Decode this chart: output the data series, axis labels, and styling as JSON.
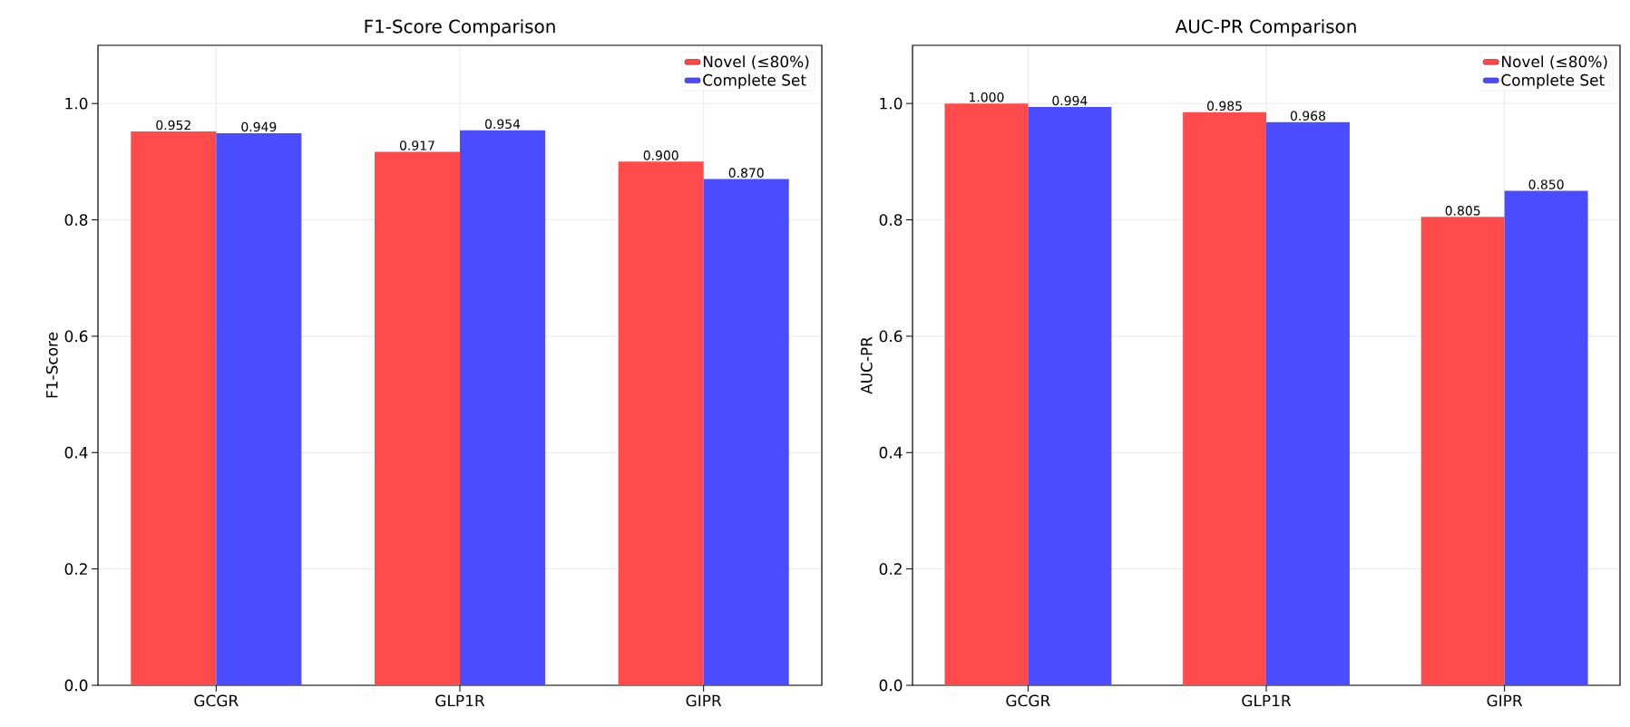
{
  "chart_data": [
    {
      "type": "bar",
      "title": "F1-Score Comparison",
      "ylabel": "F1-Score",
      "categories": [
        "GCGR",
        "GLP1R",
        "GIPR"
      ],
      "series": [
        {
          "name": "Novel (≤80%)",
          "color": "#ff4b4b",
          "values": [
            0.952,
            0.917,
            0.9
          ],
          "value_labels": [
            "0.952",
            "0.917",
            "0.900"
          ]
        },
        {
          "name": "Complete Set",
          "color": "#4b4bff",
          "values": [
            0.949,
            0.954,
            0.87
          ],
          "value_labels": [
            "0.949",
            "0.954",
            "0.870"
          ]
        }
      ],
      "ylim": [
        0,
        1.1
      ],
      "yticks": [
        {
          "value": 0,
          "label": "0.0"
        },
        {
          "value": 0.2,
          "label": "0.2"
        },
        {
          "value": 0.4,
          "label": "0.4"
        },
        {
          "value": 0.6,
          "label": "0.6"
        },
        {
          "value": 0.8,
          "label": "0.8"
        },
        {
          "value": 1.0,
          "label": "1.0"
        }
      ],
      "grid": true,
      "legend": "top right"
    },
    {
      "type": "bar",
      "title": "AUC-PR Comparison",
      "ylabel": "AUC-PR",
      "categories": [
        "GCGR",
        "GLP1R",
        "GIPR"
      ],
      "series": [
        {
          "name": "Novel (≤80%)",
          "color": "#ff4b4b",
          "values": [
            1.0,
            0.985,
            0.805
          ],
          "value_labels": [
            "1.000",
            "0.985",
            "0.805"
          ]
        },
        {
          "name": "Complete Set",
          "color": "#4b4bff",
          "values": [
            0.994,
            0.968,
            0.85
          ],
          "value_labels": [
            "0.994",
            "0.968",
            "0.850"
          ]
        }
      ],
      "ylim": [
        0,
        1.1
      ],
      "yticks": [
        {
          "value": 0,
          "label": "0.0"
        },
        {
          "value": 0.2,
          "label": "0.2"
        },
        {
          "value": 0.4,
          "label": "0.4"
        },
        {
          "value": 0.6,
          "label": "0.6"
        },
        {
          "value": 0.8,
          "label": "0.8"
        },
        {
          "value": 1.0,
          "label": "1.0"
        }
      ],
      "grid": true,
      "legend": "top right"
    }
  ]
}
